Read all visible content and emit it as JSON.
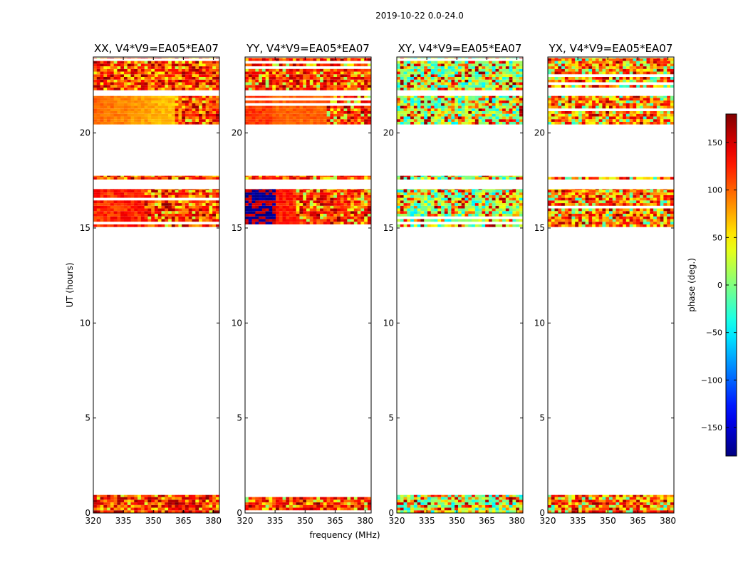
{
  "figure_title": "2019-10-22 0.0-24.0",
  "chart_data": {
    "type": "heatmap",
    "title": "2019-10-22 0.0-24.0",
    "xlabel": "frequency (MHz)",
    "ylabel": "UT (hours)",
    "xlim": [
      320,
      383
    ],
    "ylim": [
      0,
      24
    ],
    "xticks": [
      320,
      335,
      350,
      365,
      380
    ],
    "yticks": [
      0,
      5,
      10,
      15,
      20
    ],
    "panels": [
      {
        "title": "XX, V4*V9=EA05*EA07",
        "pol": "XX"
      },
      {
        "title": "YY, V4*V9=EA05*EA07",
        "pol": "YY"
      },
      {
        "title": "XY, V4*V9=EA05*EA07",
        "pol": "XY"
      },
      {
        "title": "YX, V4*V9=EA05*EA07",
        "pol": "YX"
      }
    ],
    "data_time_ranges_hours": [
      [
        0.0,
        0.95
      ],
      [
        15.05,
        17.05
      ],
      [
        17.55,
        17.75
      ],
      [
        20.45,
        21.95
      ],
      [
        22.25,
        23.95
      ]
    ],
    "colorbar": {
      "label": "phase (deg.)",
      "range": [
        -180,
        180
      ],
      "ticks": [
        -150,
        -100,
        -50,
        0,
        50,
        100,
        150
      ],
      "tick_labels": [
        "−150",
        "−100",
        "−50",
        "0",
        "50",
        "100",
        "150"
      ],
      "colormap": "jet"
    }
  }
}
